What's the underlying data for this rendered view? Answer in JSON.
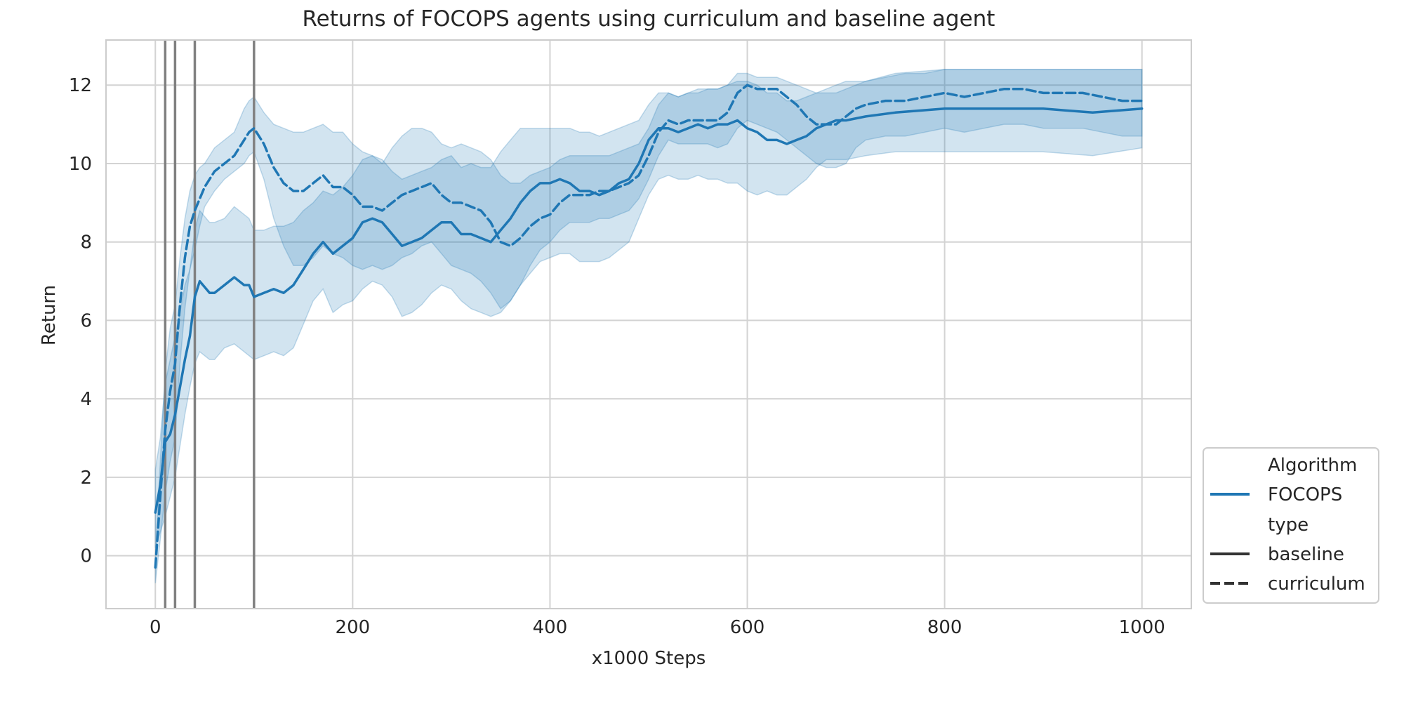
{
  "chart_data": {
    "type": "line",
    "title": "Returns of FOCOPS agents using curriculum and baseline agent",
    "xlabel": "x1000 Steps",
    "ylabel": "Return",
    "xlim": [
      -50,
      1050
    ],
    "ylim": [
      -1.35,
      13.15
    ],
    "xticks": [
      0,
      200,
      400,
      600,
      800,
      1000
    ],
    "yticks": [
      0,
      2,
      4,
      6,
      8,
      10,
      12
    ],
    "grid": true,
    "legend_position": "lower-right",
    "colors": {
      "series": "#1f77b4",
      "band": "#1f77b4",
      "vline": "#808080",
      "grid": "#d3d3d3",
      "legend_dark": "#333333"
    },
    "vertical_lines": [
      10,
      20,
      40,
      100
    ],
    "legend": {
      "title1": "Algorithm",
      "entry1": "FOCOPS",
      "title2": "type",
      "entry2": "baseline",
      "entry3": "curriculum"
    },
    "series": [
      {
        "algorithm": "FOCOPS",
        "type": "baseline",
        "dash": "solid",
        "x": [
          0,
          5,
          10,
          15,
          20,
          25,
          30,
          35,
          40,
          45,
          55,
          60,
          70,
          80,
          90,
          95,
          100,
          110,
          120,
          130,
          140,
          150,
          160,
          170,
          180,
          190,
          200,
          210,
          220,
          230,
          240,
          250,
          260,
          270,
          280,
          290,
          300,
          310,
          320,
          330,
          340,
          350,
          360,
          370,
          380,
          390,
          400,
          410,
          420,
          430,
          440,
          450,
          460,
          470,
          480,
          490,
          500,
          510,
          520,
          530,
          540,
          550,
          560,
          570,
          580,
          590,
          600,
          610,
          620,
          630,
          640,
          650,
          660,
          670,
          680,
          690,
          700,
          720,
          750,
          800,
          850,
          900,
          950,
          1000
        ],
        "y": [
          1.1,
          1.8,
          2.9,
          3.1,
          3.6,
          4.3,
          5.0,
          5.6,
          6.6,
          7.0,
          6.7,
          6.7,
          6.9,
          7.1,
          6.9,
          6.9,
          6.6,
          6.7,
          6.8,
          6.7,
          6.9,
          7.3,
          7.7,
          8.0,
          7.7,
          7.9,
          8.1,
          8.5,
          8.6,
          8.5,
          8.2,
          7.9,
          8.0,
          8.1,
          8.3,
          8.5,
          8.5,
          8.2,
          8.2,
          8.1,
          8.0,
          8.3,
          8.6,
          9.0,
          9.3,
          9.5,
          9.5,
          9.6,
          9.5,
          9.3,
          9.3,
          9.2,
          9.3,
          9.5,
          9.6,
          10.0,
          10.6,
          10.9,
          10.9,
          10.8,
          10.9,
          11.0,
          10.9,
          11.0,
          11.0,
          11.1,
          10.9,
          10.8,
          10.6,
          10.6,
          10.5,
          10.6,
          10.7,
          10.9,
          11.0,
          11.1,
          11.1,
          11.2,
          11.3,
          11.4,
          11.4,
          11.4,
          11.3,
          11.4
        ],
        "lower": [
          0.2,
          0.6,
          1.0,
          1.5,
          2.0,
          2.8,
          3.6,
          4.3,
          4.9,
          5.2,
          5.0,
          5.0,
          5.3,
          5.4,
          5.2,
          5.1,
          5.0,
          5.1,
          5.2,
          5.1,
          5.3,
          5.9,
          6.5,
          6.8,
          6.2,
          6.4,
          6.5,
          6.8,
          7.0,
          6.9,
          6.6,
          6.1,
          6.2,
          6.4,
          6.7,
          6.9,
          6.8,
          6.5,
          6.3,
          6.2,
          6.1,
          6.2,
          6.5,
          6.9,
          7.2,
          7.5,
          7.6,
          7.7,
          7.7,
          7.5,
          7.5,
          7.5,
          7.6,
          7.8,
          8.0,
          8.6,
          9.2,
          9.6,
          9.7,
          9.6,
          9.6,
          9.7,
          9.6,
          9.6,
          9.5,
          9.5,
          9.3,
          9.2,
          9.3,
          9.2,
          9.2,
          9.4,
          9.6,
          9.9,
          10.1,
          10.1,
          10.1,
          10.2,
          10.3,
          10.3,
          10.3,
          10.3,
          10.2,
          10.4
        ],
        "upper": [
          2.2,
          3.0,
          4.4,
          5.0,
          5.6,
          6.2,
          6.9,
          7.3,
          8.3,
          8.8,
          8.5,
          8.5,
          8.6,
          8.9,
          8.7,
          8.6,
          8.3,
          8.3,
          8.4,
          8.4,
          8.5,
          8.8,
          9.0,
          9.3,
          9.2,
          9.4,
          9.7,
          10.1,
          10.2,
          10.1,
          9.8,
          9.6,
          9.7,
          9.8,
          9.9,
          10.1,
          10.2,
          9.9,
          10.0,
          9.9,
          9.9,
          10.3,
          10.6,
          10.9,
          10.9,
          10.9,
          10.9,
          10.9,
          10.9,
          10.8,
          10.8,
          10.7,
          10.8,
          10.9,
          11.0,
          11.1,
          11.5,
          11.8,
          11.8,
          11.7,
          11.8,
          11.9,
          11.9,
          11.9,
          12.0,
          12.1,
          12.1,
          12.0,
          11.8,
          11.8,
          11.6,
          11.6,
          11.7,
          11.8,
          11.9,
          12.0,
          12.1,
          12.1,
          12.3,
          12.4,
          12.4,
          12.4,
          12.4,
          12.4
        ]
      },
      {
        "algorithm": "FOCOPS",
        "type": "curriculum",
        "dash": "dashed",
        "x": [
          0,
          5,
          10,
          15,
          20,
          25,
          30,
          35,
          40,
          45,
          50,
          60,
          70,
          80,
          90,
          95,
          100,
          110,
          120,
          130,
          140,
          150,
          160,
          170,
          180,
          190,
          200,
          210,
          220,
          230,
          240,
          250,
          260,
          270,
          280,
          290,
          300,
          310,
          320,
          330,
          340,
          350,
          360,
          370,
          380,
          390,
          400,
          410,
          420,
          430,
          440,
          450,
          460,
          470,
          480,
          490,
          500,
          510,
          520,
          530,
          540,
          550,
          560,
          570,
          580,
          590,
          600,
          610,
          620,
          630,
          640,
          650,
          660,
          670,
          680,
          690,
          700,
          710,
          720,
          740,
          760,
          780,
          800,
          820,
          840,
          860,
          880,
          900,
          920,
          940,
          960,
          980,
          1000
        ],
        "y": [
          -0.3,
          1.5,
          3.2,
          4.2,
          4.9,
          6.4,
          7.6,
          8.4,
          8.8,
          9.1,
          9.4,
          9.8,
          10.0,
          10.2,
          10.6,
          10.8,
          10.9,
          10.5,
          9.9,
          9.5,
          9.3,
          9.3,
          9.5,
          9.7,
          9.4,
          9.4,
          9.2,
          8.9,
          8.9,
          8.8,
          9.0,
          9.2,
          9.3,
          9.4,
          9.5,
          9.2,
          9.0,
          9.0,
          8.9,
          8.8,
          8.5,
          8.0,
          7.9,
          8.1,
          8.4,
          8.6,
          8.7,
          9.0,
          9.2,
          9.2,
          9.2,
          9.3,
          9.3,
          9.4,
          9.5,
          9.7,
          10.2,
          10.8,
          11.1,
          11.0,
          11.1,
          11.1,
          11.1,
          11.1,
          11.3,
          11.8,
          12.0,
          11.9,
          11.9,
          11.9,
          11.7,
          11.5,
          11.2,
          11.0,
          11.0,
          11.0,
          11.2,
          11.4,
          11.5,
          11.6,
          11.6,
          11.7,
          11.8,
          11.7,
          11.8,
          11.9,
          11.9,
          11.8,
          11.8,
          11.8,
          11.7,
          11.6,
          11.6
        ],
        "lower": [
          -0.7,
          0.4,
          1.6,
          2.4,
          3.0,
          4.9,
          6.3,
          7.3,
          7.8,
          8.4,
          8.9,
          9.3,
          9.6,
          9.8,
          10.0,
          10.2,
          10.3,
          9.6,
          8.6,
          7.9,
          7.4,
          7.4,
          7.6,
          7.9,
          7.7,
          7.6,
          7.4,
          7.3,
          7.4,
          7.3,
          7.4,
          7.6,
          7.7,
          7.9,
          8.0,
          7.7,
          7.4,
          7.3,
          7.2,
          7.0,
          6.7,
          6.3,
          6.5,
          6.9,
          7.4,
          7.8,
          8.0,
          8.3,
          8.5,
          8.5,
          8.5,
          8.6,
          8.6,
          8.7,
          8.8,
          9.1,
          9.6,
          10.2,
          10.6,
          10.5,
          10.5,
          10.5,
          10.5,
          10.4,
          10.5,
          10.9,
          11.1,
          11.0,
          10.9,
          10.8,
          10.6,
          10.4,
          10.2,
          10.0,
          9.9,
          9.9,
          10.0,
          10.4,
          10.6,
          10.7,
          10.7,
          10.8,
          10.9,
          10.8,
          10.9,
          11.0,
          11.0,
          10.9,
          10.9,
          10.9,
          10.8,
          10.7,
          10.7
        ],
        "upper": [
          0.0,
          2.4,
          4.7,
          5.8,
          6.4,
          7.6,
          8.6,
          9.3,
          9.7,
          9.9,
          10.0,
          10.4,
          10.6,
          10.8,
          11.4,
          11.6,
          11.7,
          11.3,
          11.0,
          10.9,
          10.8,
          10.8,
          10.9,
          11.0,
          10.8,
          10.8,
          10.5,
          10.3,
          10.2,
          10.0,
          10.4,
          10.7,
          10.9,
          10.9,
          10.8,
          10.5,
          10.4,
          10.5,
          10.4,
          10.3,
          10.1,
          9.7,
          9.5,
          9.5,
          9.7,
          9.8,
          9.9,
          10.1,
          10.2,
          10.2,
          10.2,
          10.2,
          10.2,
          10.3,
          10.4,
          10.5,
          10.9,
          11.5,
          11.8,
          11.7,
          11.8,
          11.8,
          11.9,
          11.9,
          12.0,
          12.3,
          12.3,
          12.2,
          12.2,
          12.2,
          12.1,
          12.0,
          11.9,
          11.8,
          11.8,
          11.8,
          11.9,
          12.0,
          12.1,
          12.2,
          12.3,
          12.3,
          12.4,
          12.4,
          12.4,
          12.4,
          12.4,
          12.4,
          12.4,
          12.4,
          12.4,
          12.4,
          12.4
        ]
      }
    ]
  }
}
